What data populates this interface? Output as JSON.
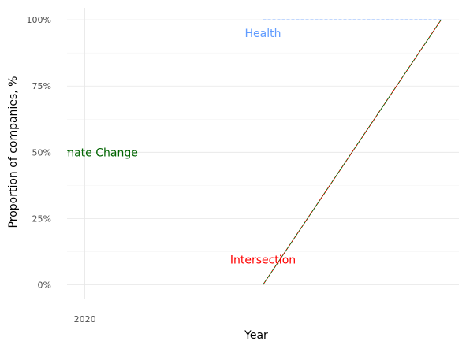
{
  "chart_data": {
    "type": "line",
    "title": "",
    "xlabel": "Year",
    "ylabel": "Proportion of companies, %",
    "x_ticks": [
      2020
    ],
    "y_ticks": [
      "0%",
      "25%",
      "50%",
      "75%",
      "100%"
    ],
    "xlim": [
      2019.9,
      2022.1
    ],
    "ylim": [
      -0.055,
      1.045
    ],
    "grid": true,
    "legend": "none",
    "series": [
      {
        "name": "Health",
        "color": "#619CFF",
        "dash": "dashed",
        "points": [
          [
            2021,
            1.0
          ],
          [
            2022,
            1.0
          ]
        ]
      },
      {
        "name": "Climate Change",
        "color": "#006400",
        "dash": "solid",
        "points": [
          [
            2021,
            0.0
          ],
          [
            2022,
            1.0
          ]
        ]
      },
      {
        "name": "Intersection",
        "color": "#FF0000",
        "dash": "dotted",
        "points": [
          [
            2021,
            0.0
          ],
          [
            2022,
            1.0
          ]
        ]
      }
    ],
    "annotations": [
      {
        "text": "Health",
        "x": 2021,
        "y": 0.95,
        "color": "#619CFF"
      },
      {
        "text": "Climate Change",
        "x": 2020.05,
        "y": 0.5,
        "color": "#006400"
      },
      {
        "text": "Intersection",
        "x": 2021,
        "y": 0.095,
        "color": "#FF0000"
      }
    ]
  }
}
